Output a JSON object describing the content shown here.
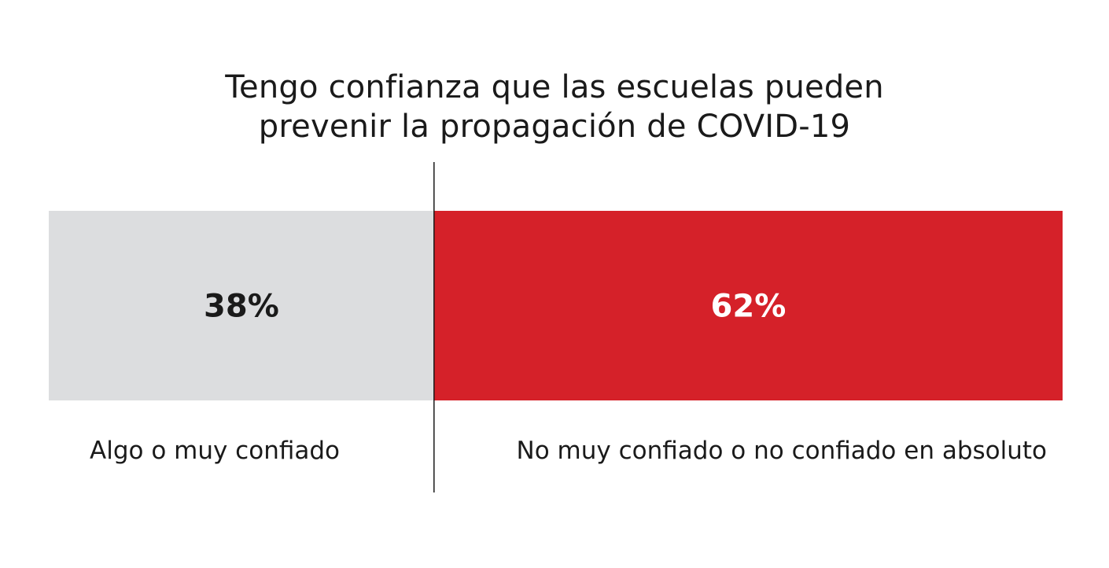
{
  "chart_data": {
    "type": "bar",
    "orientation": "horizontal-stacked",
    "title": [
      "Tengo confianza que las escuelas pueden",
      "prevenir la propagación de COVID-19"
    ],
    "categories": [
      "Algo o muy confiado",
      "No muy confiado o no confiado en absoluto"
    ],
    "values": [
      38,
      62
    ],
    "value_labels": [
      "38%",
      "62%"
    ],
    "colors": [
      "#dcdddf",
      "#d52129"
    ],
    "label_colors": [
      "#1a1a1a",
      "#ffffff"
    ]
  }
}
